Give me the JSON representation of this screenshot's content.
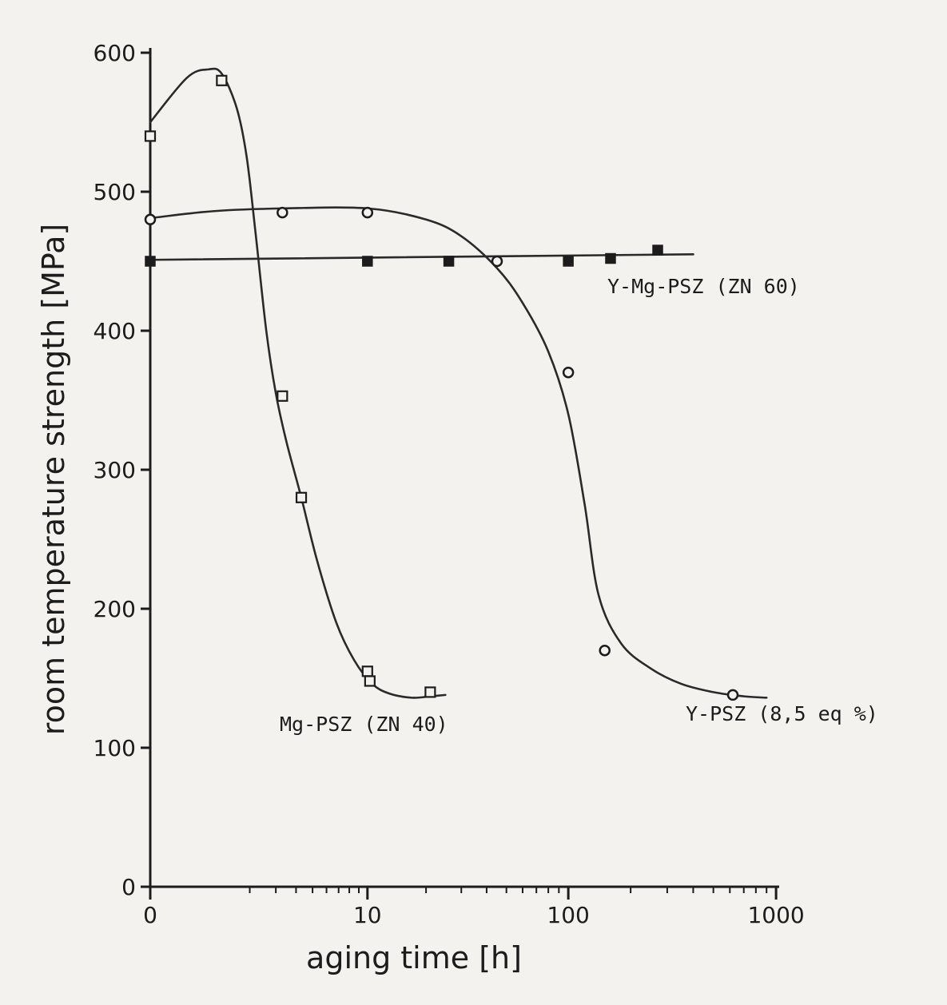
{
  "chart_data": {
    "type": "scatter",
    "xlabel": "aging time [h]",
    "ylabel": "room temperature strength [MPa]",
    "xscale": "log (0 shown at origin)",
    "xlim": [
      0,
      1000
    ],
    "ylim": [
      0,
      600
    ],
    "xticks": [
      {
        "value": 0,
        "label": "0"
      },
      {
        "value": 10,
        "label": "10"
      },
      {
        "value": 100,
        "label": "100"
      },
      {
        "value": 1000,
        "label": "1000"
      }
    ],
    "yticks": [
      {
        "value": 0,
        "label": "0"
      },
      {
        "value": 100,
        "label": "100"
      },
      {
        "value": 200,
        "label": "200"
      },
      {
        "value": 300,
        "label": "300"
      },
      {
        "value": 400,
        "label": "400"
      },
      {
        "value": 500,
        "label": "500"
      },
      {
        "value": 600,
        "label": "600"
      }
    ],
    "grid": false,
    "series": [
      {
        "name": "Mg-PSZ (ZN 40)",
        "marker": "open-square",
        "x": [
          0,
          1.2,
          3.3,
          4.3,
          10,
          10.3,
          21
        ],
        "y": [
          540,
          580,
          353,
          280,
          155,
          148,
          140
        ],
        "curve_x": [
          0,
          0.5,
          0.9,
          1.2,
          1.6,
          1.9,
          2.2,
          2.6,
          3.0,
          3.5,
          4.3,
          5.3,
          6.8,
          8.5,
          10.6,
          13,
          17,
          21,
          25
        ],
        "curve_y": [
          550,
          582,
          588,
          585,
          560,
          525,
          470,
          400,
          355,
          320,
          280,
          235,
          190,
          163,
          146,
          139,
          136,
          137,
          138
        ]
      },
      {
        "name": "Y-PSZ (8,5 eq %)",
        "marker": "open-circle",
        "x": [
          0,
          3.3,
          10,
          45,
          100,
          150,
          620
        ],
        "y": [
          480,
          485,
          485,
          450,
          370,
          170,
          138
        ],
        "curve_x": [
          0,
          1,
          3.3,
          10,
          20,
          30,
          45,
          60,
          80,
          100,
          120,
          140,
          180,
          250,
          350,
          500,
          700,
          900
        ],
        "curve_y": [
          481,
          486,
          488,
          488,
          480,
          468,
          445,
          420,
          385,
          340,
          275,
          210,
          175,
          157,
          146,
          140,
          137,
          136
        ]
      },
      {
        "name": "Y-Mg-PSZ (ZN 60)",
        "marker": "filled-square",
        "x": [
          0,
          10,
          26,
          100,
          160,
          270
        ],
        "y": [
          450,
          450,
          450,
          450,
          452,
          458
        ],
        "curve_x": [
          0,
          400
        ],
        "curve_y": [
          451,
          455
        ]
      }
    ]
  }
}
